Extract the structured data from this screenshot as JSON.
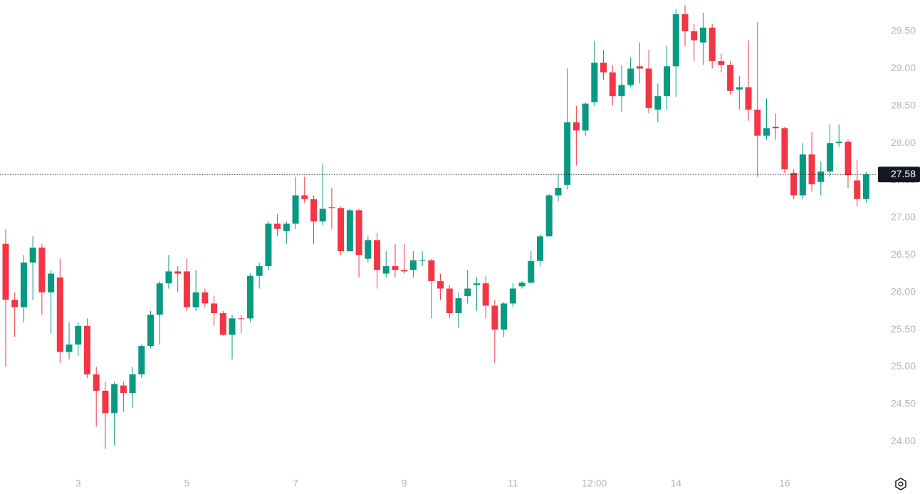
{
  "chart_data": {
    "type": "candlestick",
    "up_color": "#089981",
    "down_color": "#f23645",
    "grid": false,
    "ylim": [
      23.62,
      29.92
    ],
    "yticks": [
      {
        "value": 24,
        "label": "24.00"
      },
      {
        "value": 24.5,
        "label": "24.50"
      },
      {
        "value": 25,
        "label": "25.00"
      },
      {
        "value": 25.5,
        "label": "25.50"
      },
      {
        "value": 26,
        "label": "26.00"
      },
      {
        "value": 26.5,
        "label": "26.50"
      },
      {
        "value": 27,
        "label": "27.00"
      },
      {
        "value": 27.5,
        "label": "27.50"
      },
      {
        "value": 28,
        "label": "28.00"
      },
      {
        "value": 28.5,
        "label": "28.50"
      },
      {
        "value": 29,
        "label": "29.00"
      },
      {
        "value": 29.5,
        "label": "29.50"
      }
    ],
    "last_price": 27.58,
    "categories": [
      null,
      null,
      null,
      null,
      null,
      null,
      null,
      null,
      "3",
      null,
      null,
      null,
      null,
      null,
      null,
      null,
      null,
      null,
      null,
      null,
      "5",
      null,
      null,
      null,
      null,
      null,
      null,
      null,
      null,
      null,
      null,
      null,
      "7",
      null,
      null,
      null,
      null,
      null,
      null,
      null,
      null,
      null,
      null,
      null,
      "9",
      null,
      null,
      null,
      null,
      null,
      null,
      null,
      null,
      null,
      null,
      null,
      "11",
      null,
      null,
      null,
      null,
      null,
      null,
      null,
      null,
      "12:00",
      null,
      null,
      null,
      null,
      null,
      null,
      null,
      null,
      "14",
      null,
      null,
      null,
      null,
      null,
      null,
      null,
      null,
      null,
      null,
      null,
      "16",
      null,
      null,
      null,
      null,
      null,
      null,
      null,
      null,
      null
    ],
    "open": [
      26.65,
      25.9,
      25.8,
      26.4,
      26.6,
      26.0,
      26.2,
      25.2,
      25.3,
      25.55,
      24.9,
      24.68,
      24.38,
      24.75,
      24.65,
      24.9,
      25.28,
      25.7,
      26.12,
      26.28,
      26.28,
      25.8,
      26.0,
      25.85,
      25.72,
      25.43,
      25.65,
      25.65,
      26.22,
      26.35,
      26.92,
      26.82,
      26.92,
      27.3,
      27.25,
      26.95,
      27.14,
      27.13,
      26.55,
      27.1,
      26.45,
      26.7,
      26.25,
      26.35,
      26.3,
      26.3,
      26.42,
      26.43,
      26.15,
      26.05,
      25.72,
      25.95,
      26.1,
      26.12,
      25.82,
      25.5,
      25.85,
      26.08,
      26.13,
      26.42,
      26.75,
      27.3,
      27.44,
      28.28,
      28.17,
      28.55,
      29.08,
      28.95,
      28.63,
      28.78,
      29.03,
      29.0,
      28.45,
      28.63,
      29.03,
      29.73,
      29.5,
      29.35,
      29.55,
      29.1,
      29.05,
      28.72,
      28.75,
      28.45,
      28.1,
      28.22,
      28.2,
      27.6,
      27.3,
      27.85,
      27.48,
      27.62,
      28.0,
      28.02,
      27.5,
      27.25
    ],
    "high": [
      26.85,
      26.0,
      26.5,
      26.75,
      26.65,
      26.3,
      26.45,
      25.6,
      25.6,
      25.65,
      25.0,
      24.8,
      24.8,
      24.8,
      25.0,
      25.3,
      25.75,
      26.15,
      26.5,
      26.35,
      26.45,
      26.3,
      26.05,
      25.95,
      25.75,
      25.7,
      25.7,
      26.25,
      26.4,
      26.95,
      27.05,
      26.95,
      27.55,
      27.55,
      27.3,
      27.72,
      27.4,
      27.15,
      27.12,
      27.12,
      26.75,
      26.8,
      26.55,
      26.65,
      26.65,
      26.55,
      26.55,
      26.45,
      26.25,
      26.1,
      26.0,
      26.3,
      26.2,
      26.22,
      25.9,
      25.87,
      26.12,
      26.15,
      26.55,
      26.78,
      27.32,
      27.58,
      29.0,
      28.5,
      28.55,
      29.37,
      29.25,
      29.05,
      29.05,
      29.15,
      29.35,
      29.25,
      28.8,
      29.3,
      29.8,
      29.85,
      29.6,
      29.75,
      29.6,
      29.2,
      29.1,
      28.9,
      29.38,
      29.62,
      28.6,
      28.4,
      28.22,
      27.65,
      28.0,
      28.15,
      27.75,
      28.25,
      28.25,
      28.05,
      27.78,
      27.62
    ],
    "low": [
      25.0,
      25.4,
      25.6,
      25.9,
      25.7,
      25.45,
      25.05,
      25.1,
      25.15,
      24.85,
      24.2,
      23.9,
      23.95,
      24.4,
      24.45,
      24.85,
      25.25,
      25.3,
      26.05,
      26.0,
      25.75,
      25.75,
      25.8,
      25.55,
      25.42,
      25.1,
      25.45,
      25.6,
      26.05,
      26.3,
      26.75,
      26.65,
      26.85,
      27.2,
      26.65,
      26.9,
      26.85,
      26.5,
      26.55,
      26.2,
      26.4,
      26.05,
      26.2,
      26.2,
      26.25,
      26.2,
      26.35,
      25.65,
      25.9,
      25.65,
      25.52,
      25.85,
      25.75,
      25.65,
      25.05,
      25.4,
      25.8,
      26.05,
      26.12,
      26.35,
      26.75,
      27.22,
      27.38,
      27.7,
      28.1,
      28.5,
      28.85,
      28.5,
      28.42,
      28.75,
      28.8,
      28.4,
      28.28,
      28.45,
      28.62,
      29.3,
      29.1,
      29.05,
      29.0,
      28.95,
      28.65,
      28.45,
      28.3,
      27.55,
      28.05,
      28.05,
      27.6,
      27.25,
      27.25,
      27.35,
      27.3,
      27.55,
      27.95,
      27.4,
      27.15,
      27.2
    ],
    "close": [
      25.9,
      25.8,
      26.4,
      26.6,
      26.0,
      26.25,
      25.2,
      25.3,
      25.55,
      24.9,
      24.68,
      24.38,
      24.77,
      24.65,
      24.9,
      25.28,
      25.7,
      26.12,
      26.28,
      26.25,
      25.8,
      26.0,
      25.85,
      25.72,
      25.43,
      25.65,
      25.64,
      26.22,
      26.35,
      26.92,
      26.85,
      26.92,
      27.3,
      27.25,
      26.95,
      27.12,
      27.13,
      26.55,
      27.1,
      26.5,
      26.7,
      26.3,
      26.35,
      26.3,
      26.28,
      26.43,
      26.43,
      26.15,
      26.05,
      25.72,
      25.92,
      26.05,
      26.12,
      25.82,
      25.5,
      25.85,
      26.05,
      26.13,
      26.42,
      26.75,
      27.3,
      27.4,
      28.28,
      28.17,
      28.53,
      29.08,
      28.95,
      28.63,
      28.78,
      29.0,
      29.0,
      28.47,
      28.63,
      29.03,
      29.73,
      29.5,
      29.38,
      29.55,
      29.1,
      29.05,
      28.7,
      28.75,
      28.45,
      28.1,
      28.2,
      28.2,
      27.65,
      27.3,
      27.85,
      27.45,
      27.62,
      28.0,
      28.02,
      27.57,
      27.25,
      27.58
    ]
  }
}
